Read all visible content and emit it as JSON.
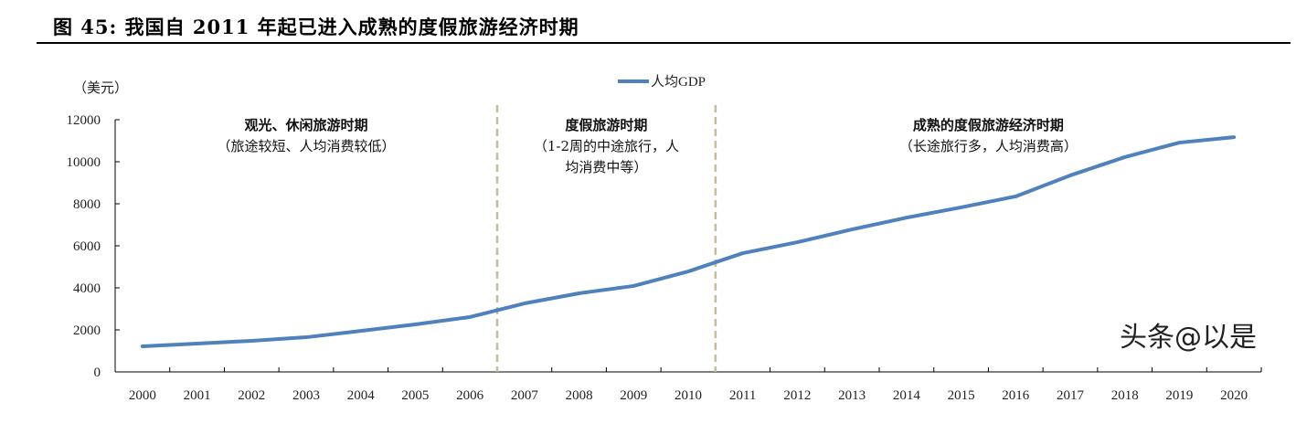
{
  "title": "图 45: 我国自 2011 年起已进入成熟的度假旅游经济时期",
  "watermark": "头条@以是",
  "chart_data": {
    "type": "line",
    "title": "",
    "ylabel": "（美元）",
    "xlabel": "",
    "ylim": [
      0,
      12000
    ],
    "yticks": [
      0,
      2000,
      4000,
      6000,
      8000,
      10000,
      12000
    ],
    "categories": [
      "2000",
      "2001",
      "2002",
      "2003",
      "2004",
      "2005",
      "2006",
      "2007",
      "2008",
      "2009",
      "2010",
      "2011",
      "2012",
      "2013",
      "2014",
      "2015",
      "2016",
      "2017",
      "2018",
      "2019",
      "2020"
    ],
    "series": [
      {
        "name": "人均GDP",
        "color": "#4F81BD",
        "values": [
          1220,
          1350,
          1480,
          1650,
          1950,
          2260,
          2610,
          3260,
          3740,
          4090,
          4780,
          5650,
          6170,
          6780,
          7340,
          7830,
          8350,
          9350,
          10220,
          10910,
          11170
        ]
      }
    ],
    "legend": "top-center",
    "grid": false,
    "dividers": {
      "color": "#C4BD97",
      "after_categories": [
        "2006",
        "2010"
      ]
    },
    "annotations": [
      {
        "lines": [
          "观光、休闲旅游时期",
          "（旅途较短、人均消费较低）"
        ]
      },
      {
        "lines": [
          "度假旅游时期",
          "（1-2周的中途旅行，人",
          "均消费中等）"
        ]
      },
      {
        "lines": [
          "成熟的度假旅游经济时期",
          "（长途旅行多，人均消费高）"
        ]
      }
    ]
  }
}
